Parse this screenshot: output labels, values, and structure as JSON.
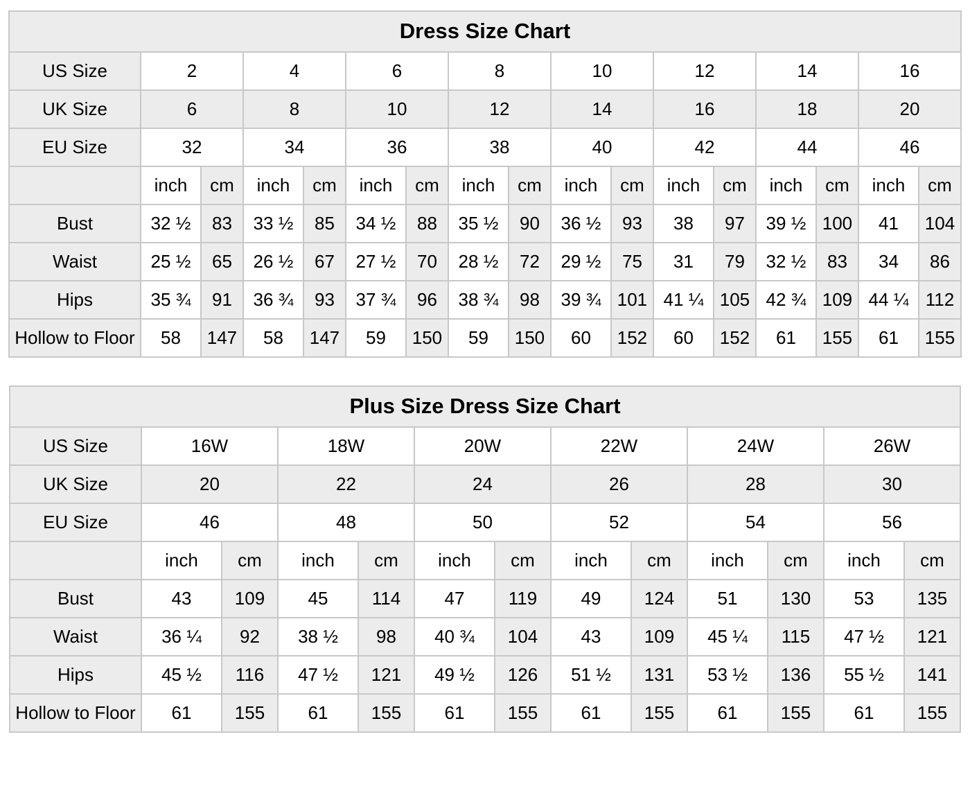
{
  "colors": {
    "shaded_cell_bg": "#ececec",
    "grid_border": "#c8c8c8",
    "text": "#000000",
    "page_bg": "#ffffff"
  },
  "chart_data": [
    {
      "type": "table",
      "title": "Dress Size Chart",
      "unit_labels": [
        "inch",
        "cm"
      ],
      "size_rows": [
        {
          "label": "US Size",
          "shaded": false,
          "values": [
            "2",
            "4",
            "6",
            "8",
            "10",
            "12",
            "14",
            "16"
          ]
        },
        {
          "label": "UK Size",
          "shaded": true,
          "values": [
            "6",
            "8",
            "10",
            "12",
            "14",
            "16",
            "18",
            "20"
          ]
        },
        {
          "label": "EU Size",
          "shaded": false,
          "values": [
            "32",
            "34",
            "36",
            "38",
            "40",
            "42",
            "44",
            "46"
          ]
        }
      ],
      "measurement_rows": [
        {
          "label": "Bust",
          "pairs": [
            [
              "32 ½",
              "83"
            ],
            [
              "33 ½",
              "85"
            ],
            [
              "34 ½",
              "88"
            ],
            [
              "35 ½",
              "90"
            ],
            [
              "36 ½",
              "93"
            ],
            [
              "38",
              "97"
            ],
            [
              "39 ½",
              "100"
            ],
            [
              "41",
              "104"
            ]
          ]
        },
        {
          "label": "Waist",
          "pairs": [
            [
              "25 ½",
              "65"
            ],
            [
              "26 ½",
              "67"
            ],
            [
              "27 ½",
              "70"
            ],
            [
              "28 ½",
              "72"
            ],
            [
              "29 ½",
              "75"
            ],
            [
              "31",
              "79"
            ],
            [
              "32 ½",
              "83"
            ],
            [
              "34",
              "86"
            ]
          ]
        },
        {
          "label": "Hips",
          "pairs": [
            [
              "35 ¾",
              "91"
            ],
            [
              "36 ¾",
              "93"
            ],
            [
              "37 ¾",
              "96"
            ],
            [
              "38 ¾",
              "98"
            ],
            [
              "39 ¾",
              "101"
            ],
            [
              "41 ¼",
              "105"
            ],
            [
              "42 ¾",
              "109"
            ],
            [
              "44 ¼",
              "112"
            ]
          ]
        },
        {
          "label": "Hollow to Floor",
          "pairs": [
            [
              "58",
              "147"
            ],
            [
              "58",
              "147"
            ],
            [
              "59",
              "150"
            ],
            [
              "59",
              "150"
            ],
            [
              "60",
              "152"
            ],
            [
              "60",
              "152"
            ],
            [
              "61",
              "155"
            ],
            [
              "61",
              "155"
            ]
          ]
        }
      ]
    },
    {
      "type": "table",
      "title": "Plus Size Dress Size Chart",
      "unit_labels": [
        "inch",
        "cm"
      ],
      "size_rows": [
        {
          "label": "US Size",
          "shaded": false,
          "values": [
            "16W",
            "18W",
            "20W",
            "22W",
            "24W",
            "26W"
          ]
        },
        {
          "label": "UK Size",
          "shaded": true,
          "values": [
            "20",
            "22",
            "24",
            "26",
            "28",
            "30"
          ]
        },
        {
          "label": "EU Size",
          "shaded": false,
          "values": [
            "46",
            "48",
            "50",
            "52",
            "54",
            "56"
          ]
        }
      ],
      "measurement_rows": [
        {
          "label": "Bust",
          "pairs": [
            [
              "43",
              "109"
            ],
            [
              "45",
              "114"
            ],
            [
              "47",
              "119"
            ],
            [
              "49",
              "124"
            ],
            [
              "51",
              "130"
            ],
            [
              "53",
              "135"
            ]
          ]
        },
        {
          "label": "Waist",
          "pairs": [
            [
              "36 ¼",
              "92"
            ],
            [
              "38 ½",
              "98"
            ],
            [
              "40 ¾",
              "104"
            ],
            [
              "43",
              "109"
            ],
            [
              "45 ¼",
              "115"
            ],
            [
              "47 ½",
              "121"
            ]
          ]
        },
        {
          "label": "Hips",
          "pairs": [
            [
              "45 ½",
              "116"
            ],
            [
              "47 ½",
              "121"
            ],
            [
              "49 ½",
              "126"
            ],
            [
              "51 ½",
              "131"
            ],
            [
              "53 ½",
              "136"
            ],
            [
              "55 ½",
              "141"
            ]
          ]
        },
        {
          "label": "Hollow to Floor",
          "pairs": [
            [
              "61",
              "155"
            ],
            [
              "61",
              "155"
            ],
            [
              "61",
              "155"
            ],
            [
              "61",
              "155"
            ],
            [
              "61",
              "155"
            ],
            [
              "61",
              "155"
            ]
          ]
        }
      ]
    }
  ]
}
